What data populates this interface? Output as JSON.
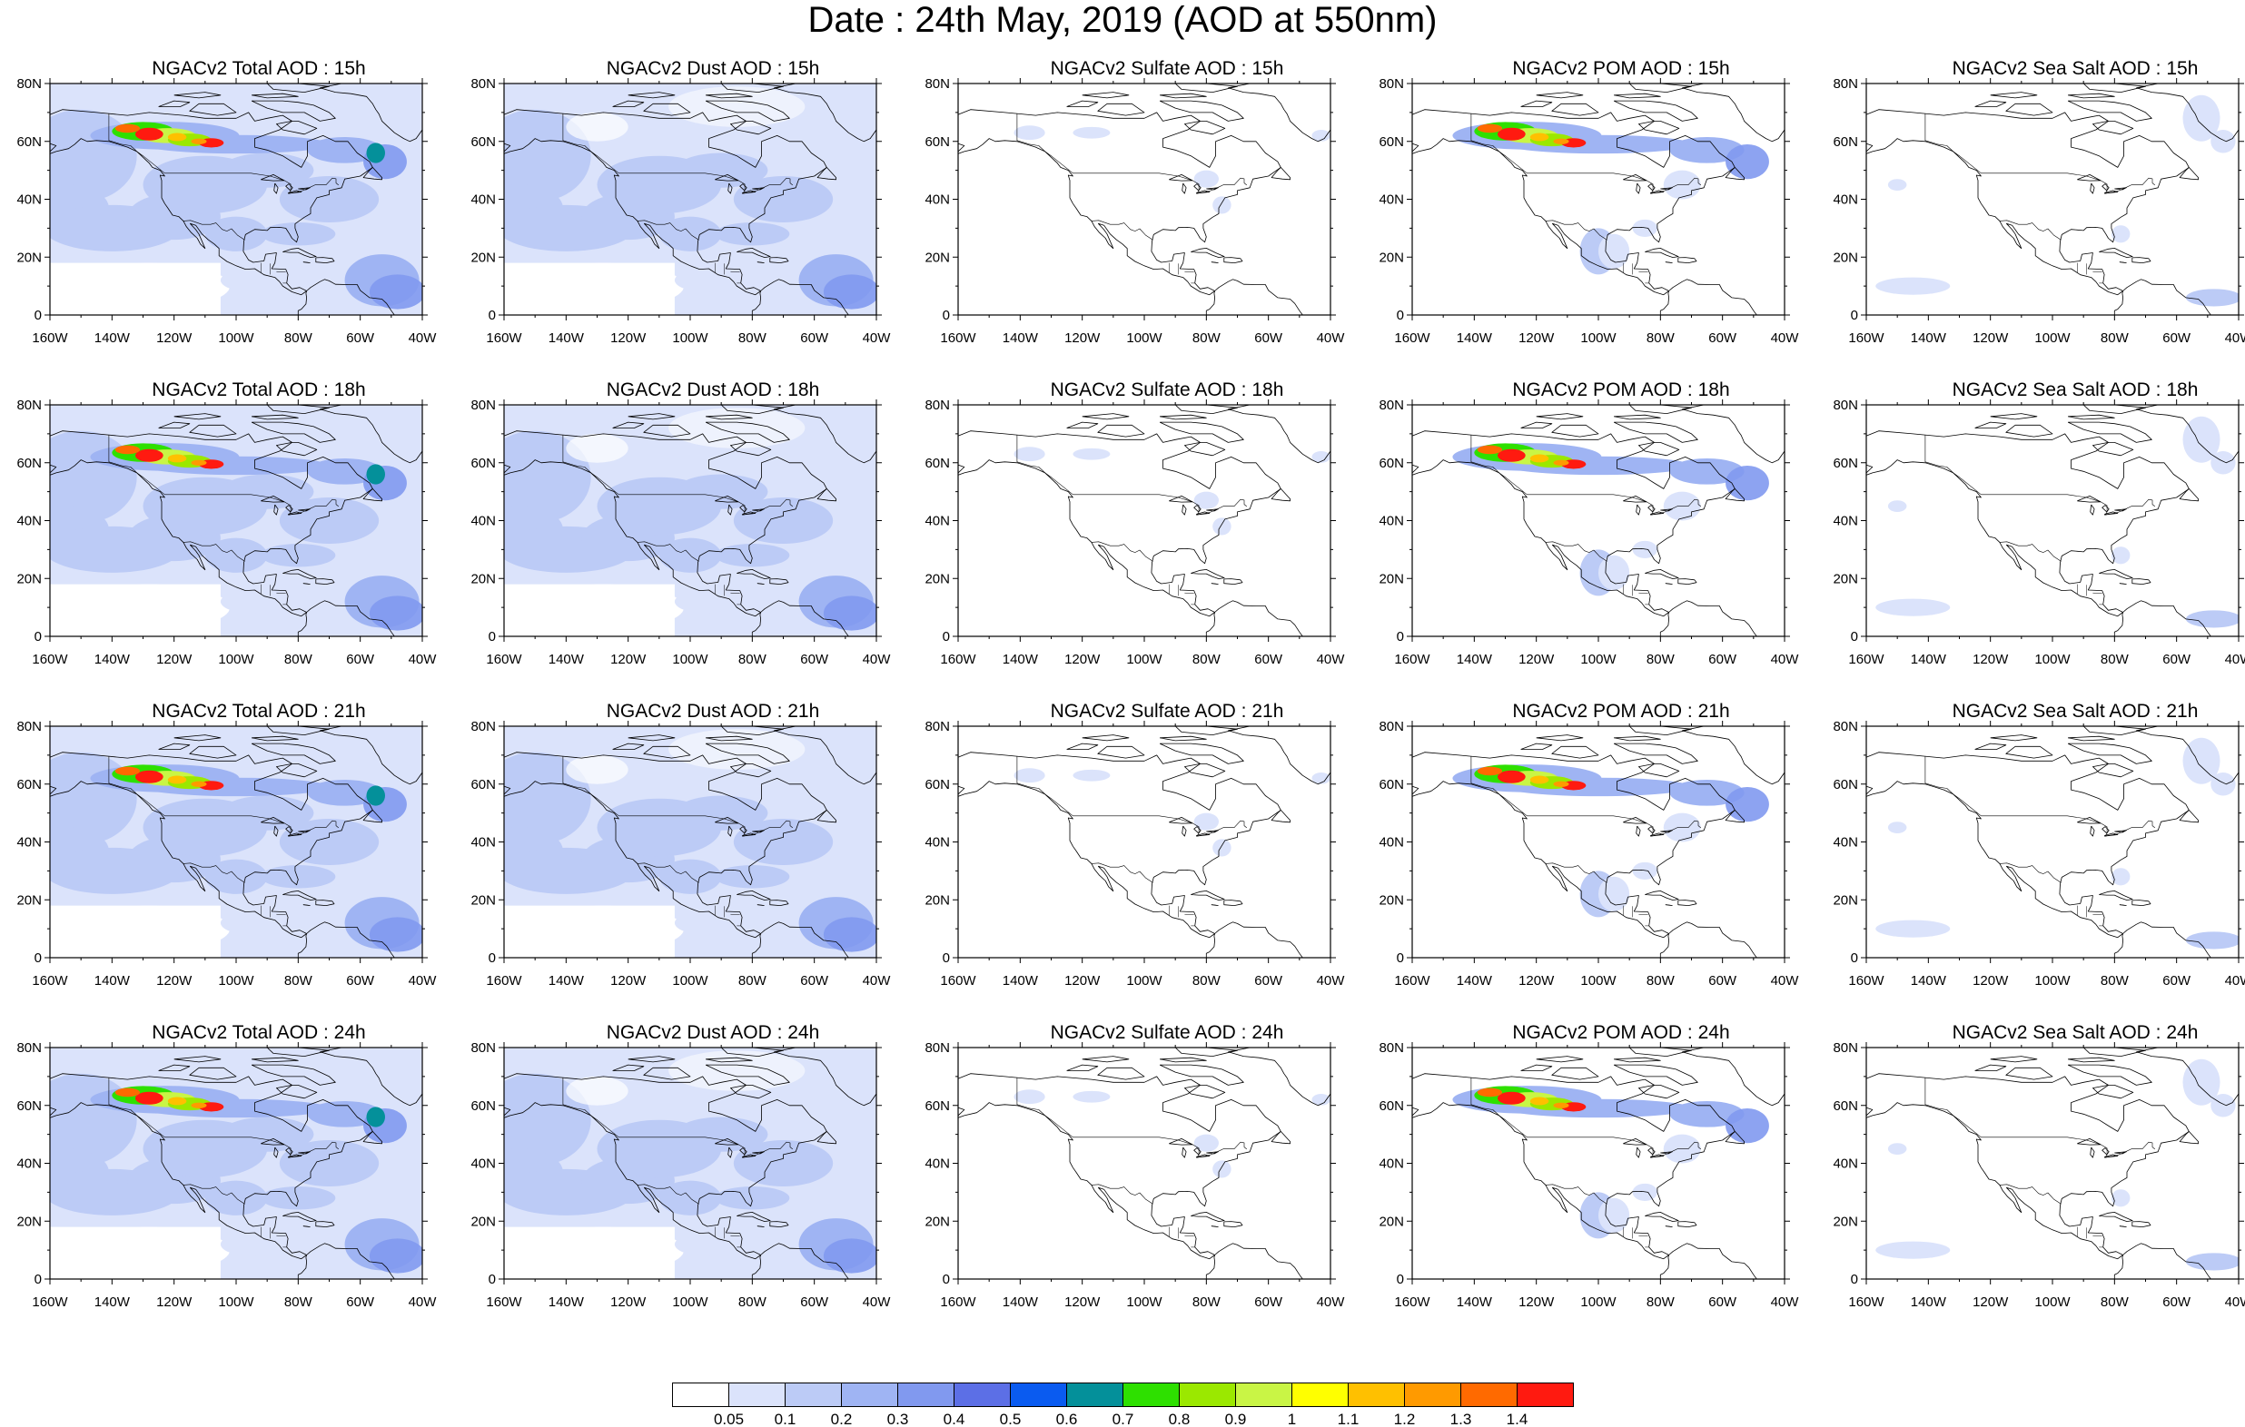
{
  "title": "Date : 24th May, 2019 (AOD at 550nm)",
  "lat_labels": [
    "80N",
    "60N",
    "40N",
    "20N",
    "0"
  ],
  "lon_labels": [
    "160W",
    "140W",
    "120W",
    "100W",
    "80W",
    "60W",
    "40W"
  ],
  "panels": [
    {
      "title": "NGACv2 Total AOD : 15h",
      "kind": "total"
    },
    {
      "title": "NGACv2 Dust AOD : 15h",
      "kind": "dust"
    },
    {
      "title": "NGACv2 Sulfate AOD : 15h",
      "kind": "sulfate"
    },
    {
      "title": "NGACv2 POM AOD : 15h",
      "kind": "pom"
    },
    {
      "title": "NGACv2 Sea Salt AOD : 15h",
      "kind": "seasalt"
    },
    {
      "title": "NGACv2 Total AOD : 18h",
      "kind": "total"
    },
    {
      "title": "NGACv2 Dust AOD : 18h",
      "kind": "dust"
    },
    {
      "title": "NGACv2 Sulfate AOD : 18h",
      "kind": "sulfate"
    },
    {
      "title": "NGACv2 POM AOD : 18h",
      "kind": "pom"
    },
    {
      "title": "NGACv2 Sea Salt AOD : 18h",
      "kind": "seasalt"
    },
    {
      "title": "NGACv2 Total AOD : 21h",
      "kind": "total"
    },
    {
      "title": "NGACv2 Dust AOD : 21h",
      "kind": "dust"
    },
    {
      "title": "NGACv2 Sulfate AOD : 21h",
      "kind": "sulfate"
    },
    {
      "title": "NGACv2 POM AOD : 21h",
      "kind": "pom"
    },
    {
      "title": "NGACv2 Sea Salt AOD : 21h",
      "kind": "seasalt"
    },
    {
      "title": "NGACv2 Total AOD : 24h",
      "kind": "total"
    },
    {
      "title": "NGACv2 Dust AOD : 24h",
      "kind": "dust"
    },
    {
      "title": "NGACv2 Sulfate AOD : 24h",
      "kind": "sulfate"
    },
    {
      "title": "NGACv2 POM AOD : 24h",
      "kind": "pom"
    },
    {
      "title": "NGACv2 Sea Salt  AOD : 24h",
      "kind": "seasalt"
    }
  ],
  "colorbar": {
    "labels": [
      "0.05",
      "0.1",
      "0.2",
      "0.3",
      "0.4",
      "0.5",
      "0.6",
      "0.7",
      "0.8",
      "0.9",
      "1",
      "1.1",
      "1.2",
      "1.3",
      "1.4"
    ],
    "colors": [
      "#ffffff",
      "#dbe3fb",
      "#bccbf6",
      "#9fb4f3",
      "#8199ef",
      "#5c6fe6",
      "#0a5bf0",
      "#04909a",
      "#2ee000",
      "#9be800",
      "#c9f545",
      "#ffff00",
      "#ffc000",
      "#ff9a00",
      "#ff6a00",
      "#ff1a10"
    ]
  }
}
